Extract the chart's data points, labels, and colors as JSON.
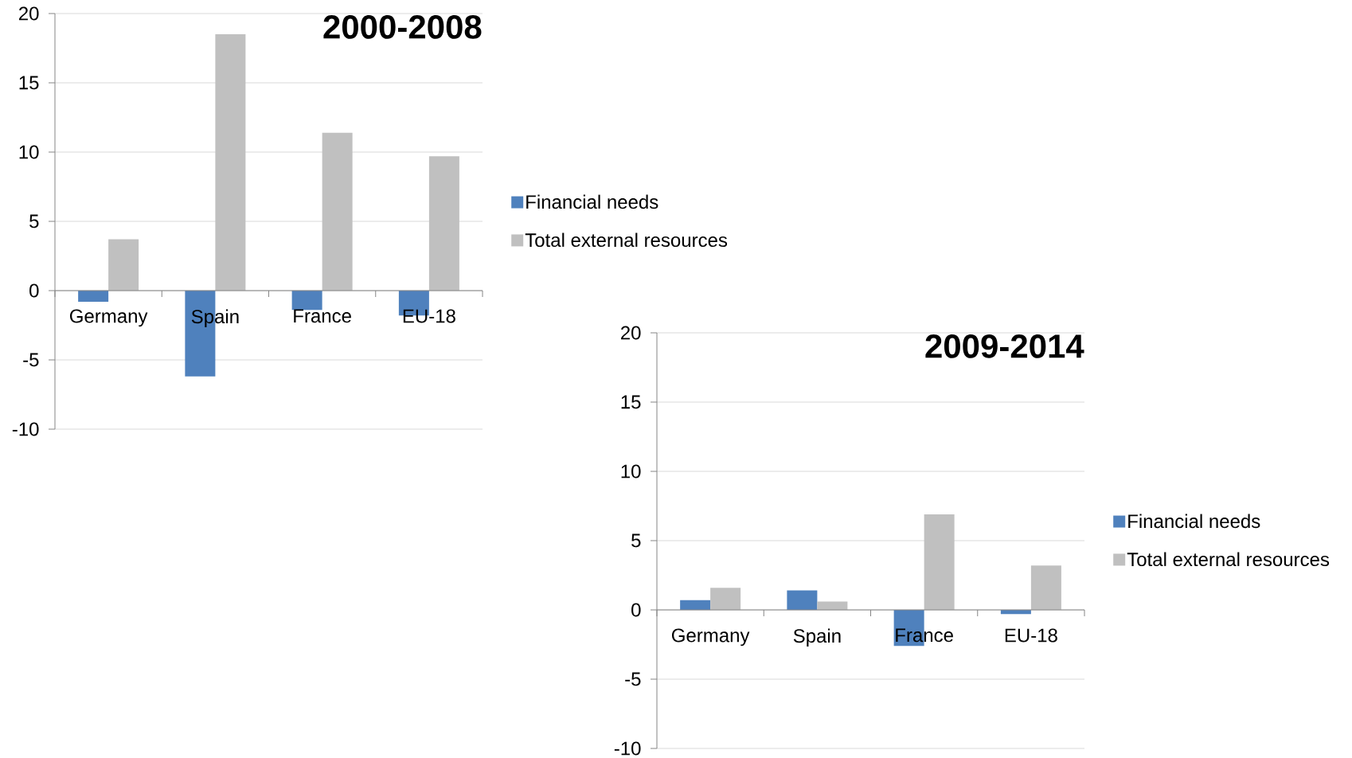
{
  "chart_data": [
    {
      "type": "bar",
      "title": "2000-2008",
      "categories": [
        "Germany",
        "Spain",
        "France",
        "EU-18"
      ],
      "series": [
        {
          "name": "Financial needs",
          "color": "#4f81bd",
          "values": [
            -0.8,
            -6.2,
            -1.4,
            -1.8
          ]
        },
        {
          "name": "Total external resources",
          "color": "#c0c0c0",
          "values": [
            3.7,
            18.5,
            11.4,
            9.7
          ]
        }
      ],
      "ylim": [
        -10,
        20
      ],
      "yticks": [
        -10,
        -5,
        0,
        5,
        10,
        15,
        20
      ],
      "grid": "y",
      "legend": "right"
    },
    {
      "type": "bar",
      "title": "2009-2014",
      "categories": [
        "Germany",
        "Spain",
        "France",
        "EU-18"
      ],
      "series": [
        {
          "name": "Financial needs",
          "color": "#4f81bd",
          "values": [
            0.7,
            1.4,
            -2.6,
            -0.3
          ]
        },
        {
          "name": "Total external resources",
          "color": "#c0c0c0",
          "values": [
            1.6,
            0.6,
            6.9,
            3.2
          ]
        }
      ],
      "ylim": [
        -10,
        20
      ],
      "yticks": [
        -10,
        -5,
        0,
        5,
        10,
        15,
        20
      ],
      "grid": "y",
      "legend": "right"
    }
  ]
}
